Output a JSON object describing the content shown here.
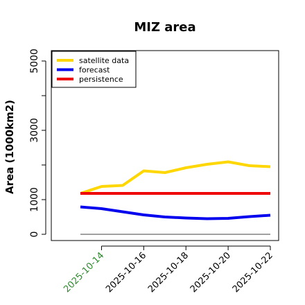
{
  "chart_data": {
    "type": "line",
    "title": "MIZ area",
    "xlabel": "",
    "ylabel": "Area (1000km2)",
    "x": [
      "2025-10-13",
      "2025-10-14",
      "2025-10-15",
      "2025-10-16",
      "2025-10-17",
      "2025-10-18",
      "2025-10-19",
      "2025-10-20",
      "2025-10-21",
      "2025-10-22"
    ],
    "x_tick_labels": [
      "2025-10-14",
      "2025-10-16",
      "2025-10-18",
      "2025-10-20",
      "2025-10-22"
    ],
    "x_tick_label_colors": [
      "#2e8b2e",
      "#000000",
      "#000000",
      "#000000",
      "#000000"
    ],
    "y_ticks": [
      0,
      1000,
      3000,
      5000
    ],
    "ylim": [
      -100,
      5300
    ],
    "grid": false,
    "legend_position": "top-left",
    "series": [
      {
        "name": "satellite data",
        "color": "#ffd700",
        "values": [
          1180,
          1380,
          1410,
          1830,
          1780,
          1920,
          2020,
          2090,
          1980,
          1950
        ]
      },
      {
        "name": "forecast",
        "color": "#0000ee",
        "values": [
          790,
          740,
          650,
          560,
          500,
          470,
          450,
          460,
          510,
          550
        ]
      },
      {
        "name": "persistence",
        "color": "#ee0000",
        "values": [
          1180,
          1180,
          1180,
          1180,
          1180,
          1180,
          1180,
          1180,
          1180,
          1180
        ]
      }
    ],
    "zero_line": {
      "value": 0,
      "color": "#808080"
    }
  }
}
